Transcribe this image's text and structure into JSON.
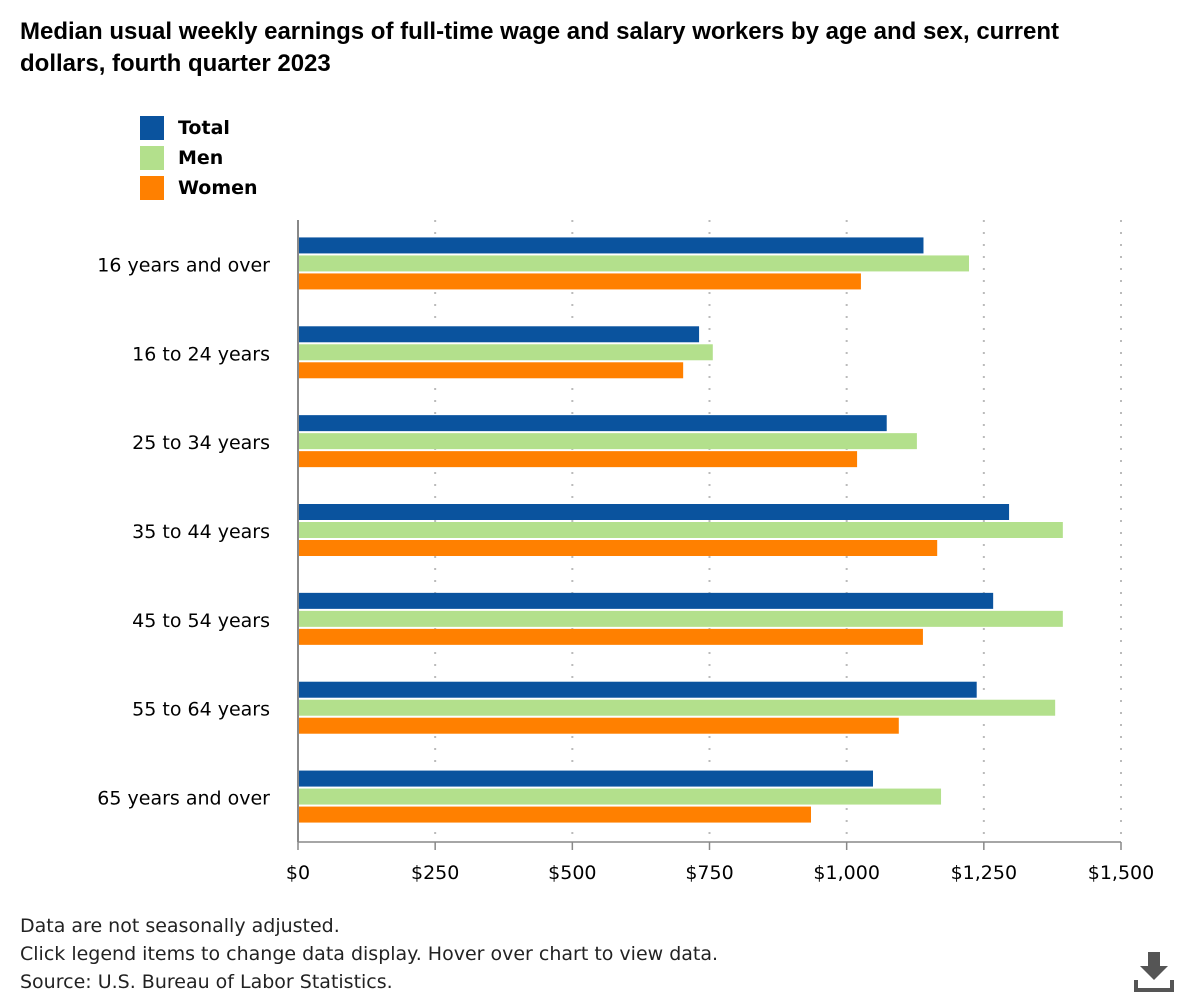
{
  "chart_data": {
    "type": "bar",
    "orientation": "horizontal",
    "title": "Median usual weekly earnings of full-time wage and salary workers by age and sex, current dollars, fourth quarter 2023",
    "categories": [
      "16 years and over",
      "16 to 24 years",
      "25 to 34 years",
      "35 to 44 years",
      "45 to 54 years",
      "55 to 64 years",
      "65 years and over"
    ],
    "series": [
      {
        "name": "Total",
        "color": "#0a539e",
        "values": [
          1140,
          731,
          1073,
          1296,
          1267,
          1237,
          1048
        ]
      },
      {
        "name": "Men",
        "color": "#b3e08c",
        "values": [
          1223,
          756,
          1128,
          1394,
          1394,
          1380,
          1172
        ]
      },
      {
        "name": "Women",
        "color": "#ff8000",
        "values": [
          1026,
          702,
          1019,
          1165,
          1139,
          1095,
          935
        ]
      }
    ],
    "xlim": [
      0,
      1500
    ],
    "xticks": [
      0,
      250,
      500,
      750,
      1000,
      1250,
      1500
    ],
    "xtick_labels": [
      "$0",
      "$250",
      "$500",
      "$750",
      "$1,000",
      "$1,250",
      "$1,500"
    ],
    "grid": "vertical dotted",
    "legend": "top-left"
  },
  "notes": [
    "Data are not seasonally adjusted.",
    "Click legend items to change data display. Hover over chart to view data.",
    "Source: U.S. Bureau of Labor Statistics."
  ],
  "download_icon": "download-icon"
}
